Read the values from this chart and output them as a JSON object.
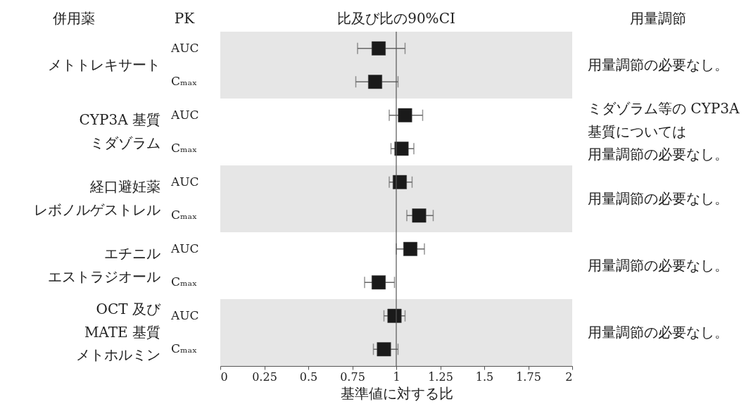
{
  "chart_data": {
    "type": "scatter",
    "orientation": "horizontal",
    "title": "比及び比の90%CI",
    "xlabel": "基準値に対する比",
    "categories": [
      "AUC",
      "Cₘₐₓ",
      "AUC",
      "Cₘₐₓ",
      "AUC",
      "Cₘₐₓ",
      "AUC",
      "Cₘₐₓ",
      "AUC",
      "Cₘₐₓ"
    ],
    "series": [
      {
        "color": "#1a1a1a",
        "values": [
          0.9,
          0.88,
          1.05,
          1.03,
          1.02,
          1.13,
          1.08,
          0.9,
          0.99,
          0.93
        ],
        "errors": [
          [
            0.78,
            1.05
          ],
          [
            0.77,
            1.01
          ],
          [
            0.96,
            1.15
          ],
          [
            0.97,
            1.1
          ],
          [
            0.96,
            1.09
          ],
          [
            1.06,
            1.21
          ],
          [
            1.0,
            1.16
          ],
          [
            0.82,
            0.99
          ],
          [
            0.93,
            1.05
          ],
          [
            0.87,
            1.01
          ]
        ]
      }
    ],
    "xlim": [
      0,
      2
    ],
    "xticks": [
      0,
      0.25,
      0.5,
      0.75,
      1,
      1.25,
      1.5,
      1.75,
      2
    ],
    "marker": "square",
    "grid": false,
    "ref_lines": [
      {
        "axis": "x",
        "value": 1,
        "color": "#555555"
      }
    ],
    "annotations": [
      "併用薬",
      "PK",
      "用量調節",
      "メトトレキサート",
      "CYP3A 基質",
      "ミダゾラム",
      "経口避妊薬",
      "レボノルゲストレル",
      "エチニル",
      "エストラジオール",
      "OCT 及び",
      "MATE 基質",
      "メトホルミン",
      "用量調節の必要なし。",
      "ミダゾラム等の CYP3A",
      "基質については",
      "用量調節の必要なし。",
      "用量調節の必要なし。",
      "用量調節の必要なし。",
      "用量調節の必要なし。"
    ]
  }
}
